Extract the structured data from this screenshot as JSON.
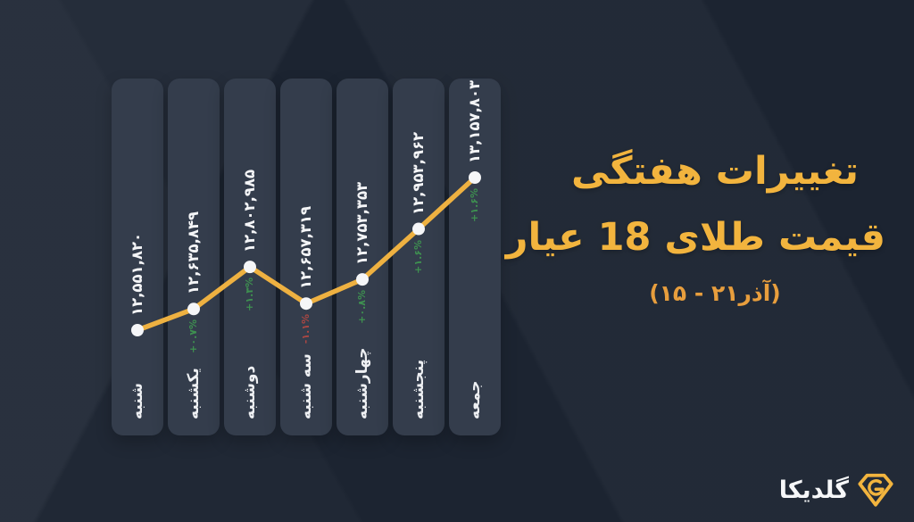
{
  "title": {
    "line1": "تغییرات هفتگی",
    "line2": "قیمت طلای 18 عیار",
    "subtitle": "(۱۵ - ۲۱آذر)"
  },
  "logo": {
    "name": "گلدیکا",
    "icon": "goldika-gem-icon"
  },
  "colors": {
    "background": "#1c2431",
    "column": "#343d4c",
    "line": "#eeb141",
    "dot": "#f5f6f8",
    "title_gold": "#f2b43e",
    "subtitle_orange": "#e89e3d",
    "up_green": "#3e9050",
    "down_red": "#aa4743",
    "text_white": "#f4f5f7"
  },
  "chart_data": {
    "type": "line",
    "title": "تغییرات هفتگی قیمت طلای 18 عیار",
    "subtitle": "(۱۵ - ۲۱آذر)",
    "categories": [
      "شنبه",
      "یکشنبه",
      "دوشنبه",
      "سه شنبه",
      "چهارشنبه",
      "پنجشنبه",
      "جمعه"
    ],
    "values": [
      12551820,
      12635849,
      12802985,
      12657319,
      12753353,
      12953962,
      13157803
    ],
    "values_display": [
      "۱۲,۵۵۱,۸۲۰",
      "۱۲,۶۳۵,۸۴۹",
      "۱۲,۸۰۲,۹۸۵",
      "۱۲,۶۵۷,۳۱۹",
      "۱۲,۷۵۳,۳۵۳",
      "۱۲,۹۵۳,۹۶۲",
      "۱۳,۱۵۷,۸۰۳"
    ],
    "changes_display": [
      null,
      "+۰.۷%",
      "+۱.۳%",
      "-۱.۱%",
      "+۰.۸%",
      "+۱.۶%",
      "+۱.۶%"
    ],
    "changes_pct": [
      null,
      0.7,
      1.3,
      -1.1,
      0.8,
      1.6,
      1.6
    ],
    "legend_position": "none",
    "grid": false,
    "ylim": [
      12551820,
      13157803
    ]
  }
}
